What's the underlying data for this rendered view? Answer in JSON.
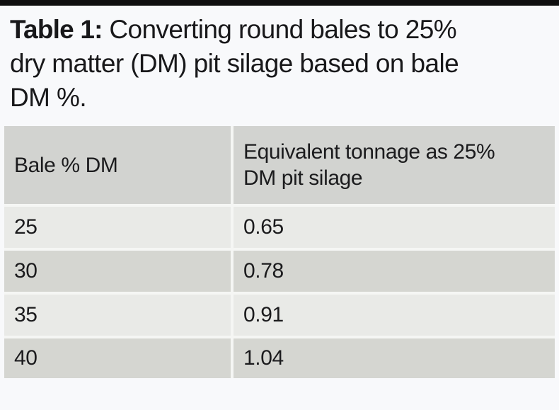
{
  "title": {
    "prefix": "Table 1:",
    "lines": [
      " Converting round bales to 25%",
      "dry matter (DM) pit silage based on bale",
      "DM %."
    ]
  },
  "table": {
    "columns": {
      "col1": "Bale % DM",
      "col2_line1": "Equivalent tonnage as 25%",
      "col2_line2": "DM pit silage"
    },
    "rows": [
      {
        "bale_dm": "25",
        "tonnage": "0.65"
      },
      {
        "bale_dm": "30",
        "tonnage": "0.78"
      },
      {
        "bale_dm": "35",
        "tonnage": "0.91"
      },
      {
        "bale_dm": "40",
        "tonnage": "1.04"
      }
    ]
  },
  "colors": {
    "page_bg": "#f8f9fb",
    "top_bar": "#101010",
    "header_bg": "#d2d3d0",
    "row_light": "#e9eae7",
    "row_dark": "#d5d6d1",
    "divider": "#f5f6f4",
    "text": "#1b1b1d"
  },
  "chart_data": {
    "type": "table",
    "title": "Table 1: Converting round bales to 25% dry matter (DM) pit silage based on bale DM %.",
    "columns": [
      "Bale % DM",
      "Equivalent tonnage as 25% DM pit silage"
    ],
    "rows": [
      [
        25,
        0.65
      ],
      [
        30,
        0.78
      ],
      [
        35,
        0.91
      ],
      [
        40,
        1.04
      ]
    ]
  }
}
